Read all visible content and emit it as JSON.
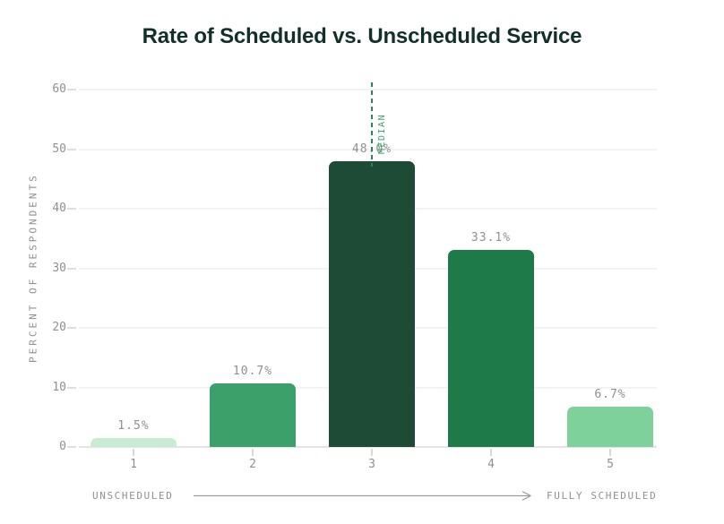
{
  "title": "Rate of Scheduled vs. Unscheduled Service",
  "colors": {
    "title": "#12302a",
    "bars": [
      "#c7ecd1",
      "#3ba06a",
      "#1d4b36",
      "#1e7b49",
      "#7fd19c"
    ],
    "median_line": "#2f8157",
    "median_text": "#44a271",
    "axis_text": "#8d8f91",
    "gridline": "#f3f3f3",
    "axis_line": "#e4e4e4"
  },
  "icons": {
    "x_axis_arrow": "right-arrow-icon"
  },
  "chart_data": {
    "type": "bar",
    "title": "Rate of Scheduled vs. Unscheduled Service",
    "categories": [
      "1",
      "2",
      "3",
      "4",
      "5"
    ],
    "values": [
      1.5,
      10.7,
      48.0,
      33.1,
      6.7
    ],
    "bar_labels": [
      "1.5%",
      "10.7%",
      "48.0%",
      "33.1%",
      "6.7%"
    ],
    "ylabel": "PERCENT OF RESPONDENTS",
    "xlabel_left": "UNSCHEDULED",
    "xlabel_right": "FULLY SCHEDULED",
    "yticks": [
      0,
      10,
      20,
      30,
      40,
      50,
      60
    ],
    "ylim": [
      0,
      60
    ],
    "grid": true,
    "legend_position": "none",
    "annotations": [
      {
        "label": "MEDIAN",
        "category": "3",
        "type": "dashed-vertical-line"
      }
    ]
  }
}
